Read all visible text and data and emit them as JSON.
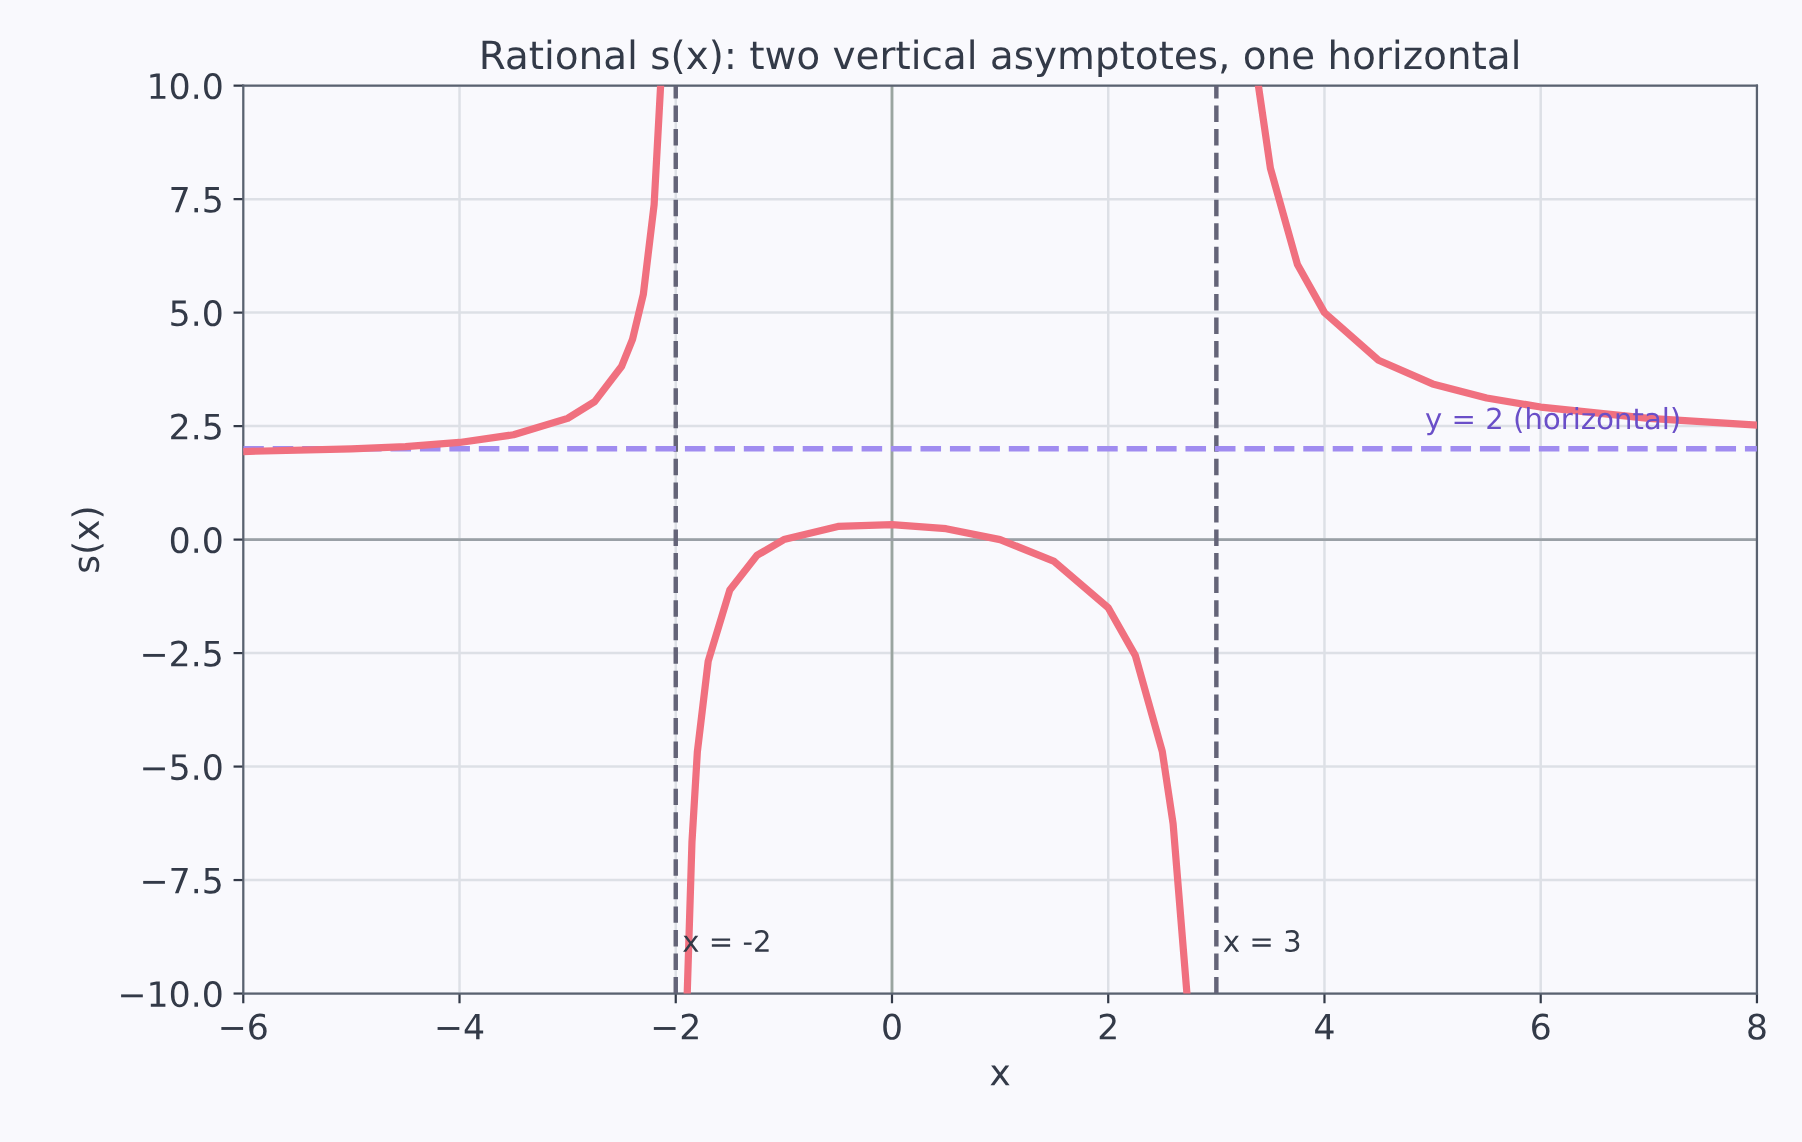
{
  "chart_data": {
    "type": "line",
    "title": "Rational s(x): two vertical asymptotes, one horizontal",
    "xlabel": "x",
    "ylabel": "s(x)",
    "x": [
      -6,
      -5,
      -4.5,
      -4,
      -3.5,
      -3,
      -2.75,
      -2.5,
      -2.4,
      -2.3,
      -2.2,
      -2.14,
      -2.1,
      -1.894,
      -1.85,
      -1.8,
      -1.7,
      -1.5,
      -1.25,
      -1,
      -0.5,
      0,
      0.5,
      1,
      1.5,
      2,
      2.25,
      2.5,
      2.6,
      2.728,
      3.2,
      3.389,
      3.5,
      3.75,
      4,
      4.5,
      5,
      5.5,
      6,
      7,
      8
    ],
    "series": [
      {
        "color": "#f0707f",
        "values": [
          1.94,
          2.0,
          2.05,
          2.14,
          2.31,
          2.67,
          3.04,
          3.82,
          4.41,
          5.4,
          7.38,
          10.0,
          null,
          -10,
          -6.66,
          -4.67,
          -2.68,
          -1.11,
          -0.35,
          0,
          0.29,
          0.33,
          0.24,
          0,
          -0.48,
          -1.5,
          -2.55,
          -4.67,
          -6.26,
          -10,
          null,
          10,
          8.18,
          6.06,
          5.0,
          3.95,
          3.43,
          3.12,
          2.92,
          2.67,
          2.52
        ]
      }
    ],
    "xlim": [
      -6,
      8
    ],
    "ylim": [
      -10,
      10
    ],
    "xticks": [
      {
        "value": -6,
        "label": "−6"
      },
      {
        "value": -4,
        "label": "−4"
      },
      {
        "value": -2,
        "label": "−2"
      },
      0,
      2,
      4,
      6,
      8
    ],
    "yticks": [
      {
        "value": -10,
        "label": "−10.0"
      },
      {
        "value": -7.5,
        "label": "−7.5"
      },
      {
        "value": -5,
        "label": "−5.0"
      },
      {
        "value": -2.5,
        "label": "−2.5"
      },
      {
        "value": 0,
        "label": "0.0"
      },
      {
        "value": 2.5,
        "label": "2.5"
      },
      {
        "value": 5,
        "label": "5.0"
      },
      {
        "value": 7.5,
        "label": "7.5"
      },
      {
        "value": 10,
        "label": "10.0"
      }
    ],
    "ref_lines": [
      {
        "axis": "x",
        "value": 0,
        "color": "#9aa5a0",
        "line_style": "solid"
      },
      {
        "axis": "y",
        "value": 0,
        "color": "#9aa0a6",
        "line_style": "solid"
      },
      {
        "axis": "x",
        "value": -2,
        "label": "x = -2",
        "color": "#646478",
        "line_style": "dashed"
      },
      {
        "axis": "x",
        "value": 3,
        "label": "x = 3",
        "color": "#646478",
        "line_style": "dashed"
      },
      {
        "axis": "y",
        "value": 2,
        "label": "y = 2 (horizontal)",
        "color": "#a08cf0",
        "line_style": "dashed"
      }
    ],
    "grid": true,
    "legend": false
  }
}
